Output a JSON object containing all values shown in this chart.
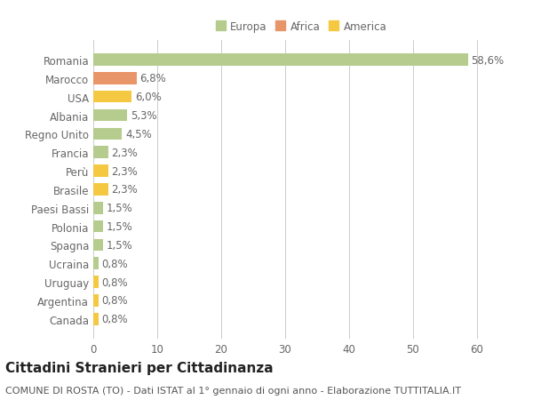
{
  "categories": [
    "Canada",
    "Argentina",
    "Uruguay",
    "Ucraina",
    "Spagna",
    "Polonia",
    "Paesi Bassi",
    "Brasile",
    "Perù",
    "Francia",
    "Regno Unito",
    "Albania",
    "USA",
    "Marocco",
    "Romania"
  ],
  "values": [
    0.8,
    0.8,
    0.8,
    0.8,
    1.5,
    1.5,
    1.5,
    2.3,
    2.3,
    2.3,
    4.5,
    5.3,
    6.0,
    6.8,
    58.6
  ],
  "labels": [
    "0,8%",
    "0,8%",
    "0,8%",
    "0,8%",
    "1,5%",
    "1,5%",
    "1,5%",
    "2,3%",
    "2,3%",
    "2,3%",
    "4,5%",
    "5,3%",
    "6,0%",
    "6,8%",
    "58,6%"
  ],
  "colors": [
    "#f5c842",
    "#f5c842",
    "#f5c842",
    "#b5cc8e",
    "#b5cc8e",
    "#b5cc8e",
    "#b5cc8e",
    "#f5c842",
    "#f5c842",
    "#b5cc8e",
    "#b5cc8e",
    "#b5cc8e",
    "#f5c842",
    "#e8956a",
    "#b5cc8e"
  ],
  "legend_labels": [
    "Europa",
    "Africa",
    "America"
  ],
  "legend_colors": [
    "#b5cc8e",
    "#e8956a",
    "#f5c842"
  ],
  "title": "Cittadini Stranieri per Cittadinanza",
  "subtitle": "COMUNE DI ROSTA (TO) - Dati ISTAT al 1° gennaio di ogni anno - Elaborazione TUTTITALIA.IT",
  "xlim": [
    0,
    65
  ],
  "xticks": [
    0,
    10,
    20,
    30,
    40,
    50,
    60
  ],
  "background_color": "#ffffff",
  "grid_color": "#cccccc",
  "bar_height": 0.65,
  "label_fontsize": 8.5,
  "tick_fontsize": 8.5,
  "title_fontsize": 11,
  "subtitle_fontsize": 8
}
